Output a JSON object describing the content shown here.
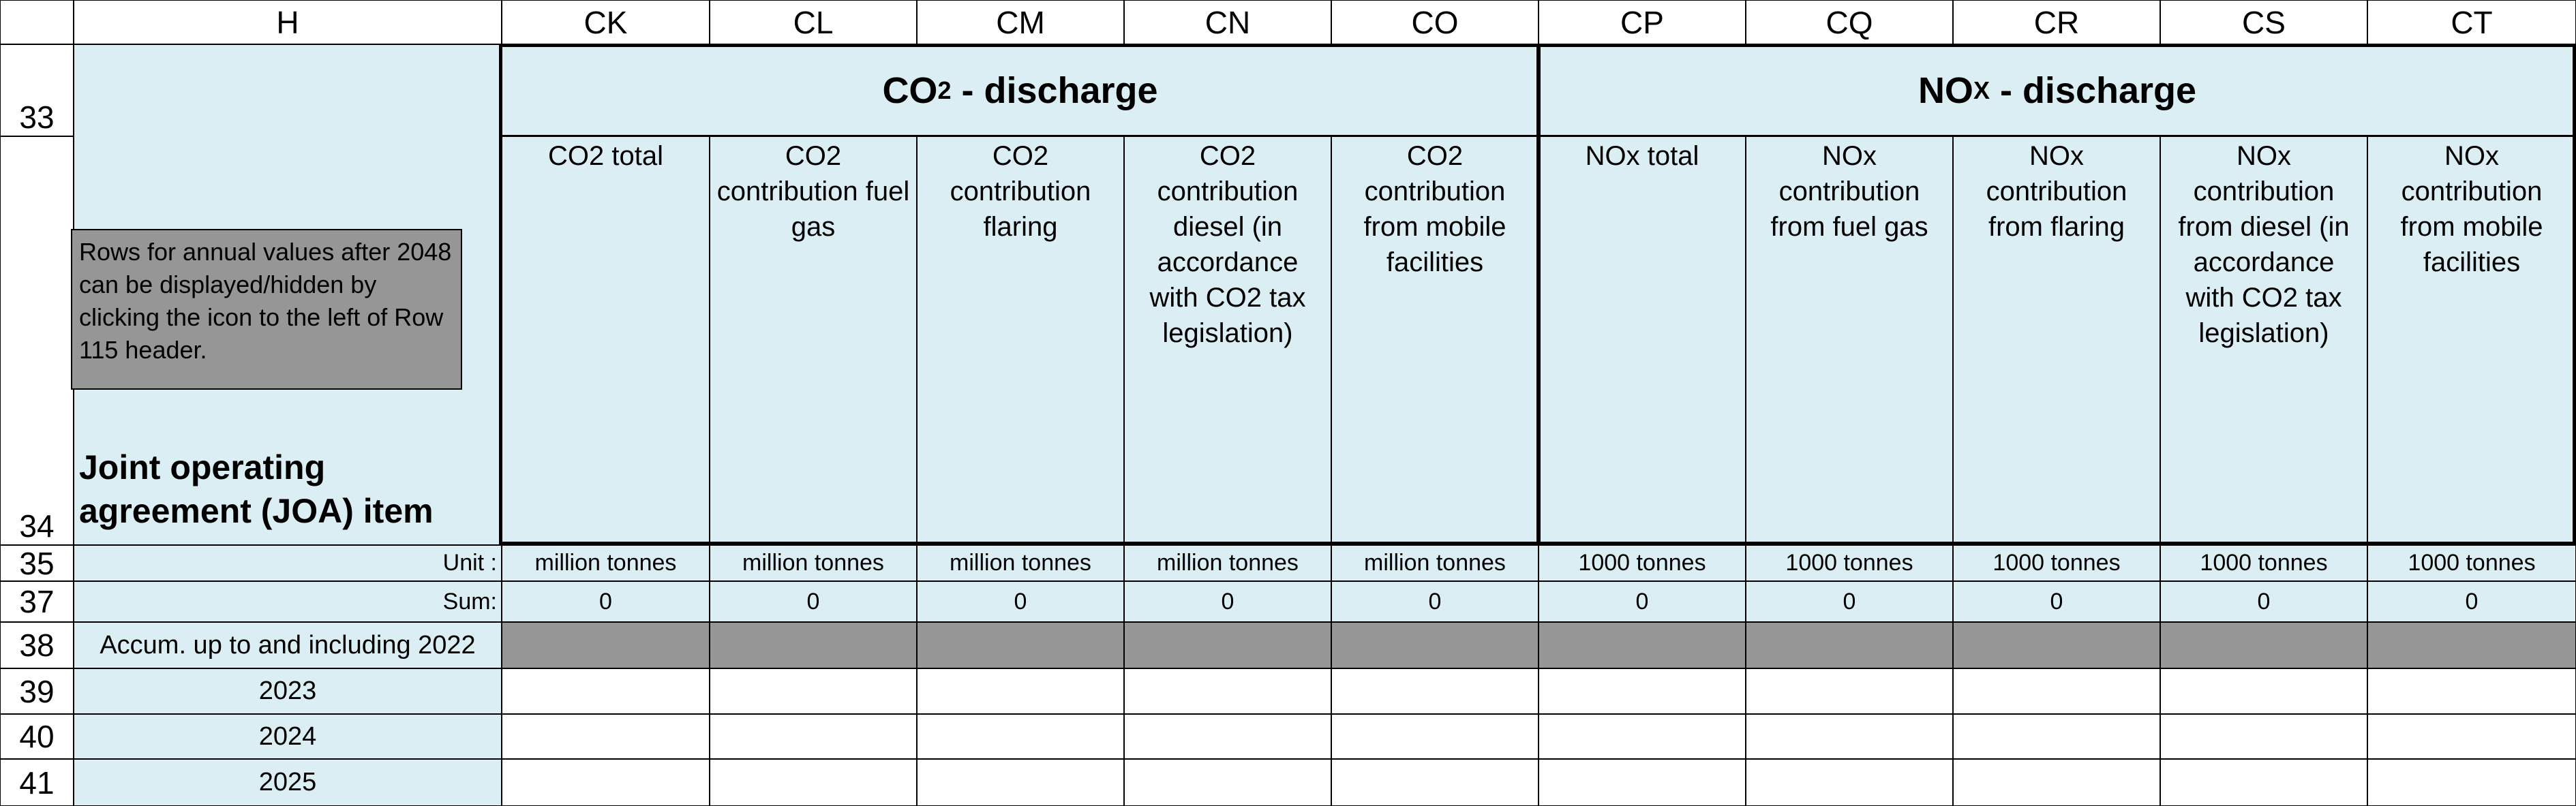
{
  "columns": {
    "H": "H",
    "CK": "CK",
    "CL": "CL",
    "CM": "CM",
    "CN": "CN",
    "CO": "CO",
    "CP": "CP",
    "CQ": "CQ",
    "CR": "CR",
    "CS": "CS",
    "CT": "CT"
  },
  "rows": {
    "r33": "33",
    "r34": "34",
    "r35": "35",
    "r37": "37",
    "r38": "38",
    "r39": "39",
    "r40": "40",
    "r41": "41"
  },
  "groups": {
    "co2_main": "CO",
    "co2_sub": "2",
    "co2_tail": " - discharge",
    "nox_main": "NO",
    "nox_sub": "X",
    "nox_tail": " - discharge"
  },
  "subheaders": {
    "CK": "CO2 total",
    "CL": "CO2 contribution fuel gas",
    "CM": "CO2 contribution flaring",
    "CN": "CO2 contribution diesel (in accordance with CO2 tax legislation)",
    "CO": "CO2 contribution from mobile facilities",
    "CP": "NOx total",
    "CQ": "NOx contribution from fuel gas",
    "CR": "NOx contribution from flaring",
    "CS": "NOx contribution from diesel (in accordance with CO2 tax legislation)",
    "CT": "NOx contribution from mobile facilities"
  },
  "note": "Rows for annual values after 2048 can be displayed/hidden by clicking the icon to the left of Row 115 header.",
  "joa_label": "Joint operating agreement (JOA)  item",
  "labels": {
    "unit": "Unit :",
    "sum": "Sum:",
    "accum": "Accum. up to and including 2022",
    "y2023": "2023",
    "y2024": "2024",
    "y2025": "2025"
  },
  "units": {
    "co2": "million tonnes",
    "nox": "1000 tonnes"
  },
  "sums": {
    "CK": "0",
    "CL": "0",
    "CM": "0",
    "CN": "0",
    "CO": "0",
    "CP": "0",
    "CQ": "0",
    "CR": "0",
    "CS": "0",
    "CT": "0"
  },
  "colors": {
    "header_fill": "#dbeef4",
    "gray_fill": "#969696"
  }
}
